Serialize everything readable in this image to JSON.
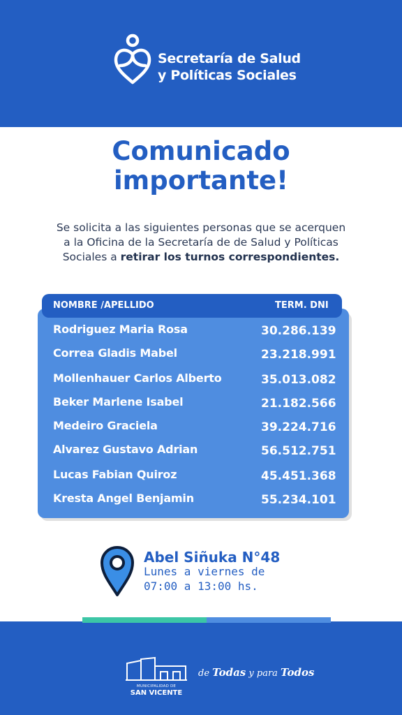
{
  "header": {
    "org_line1": "Secretaría de Salud",
    "org_line2": "y Políticas Sociales",
    "logo_icon": "heart-person-logo-icon"
  },
  "title": {
    "line1": "Comunicado",
    "line2": "importante!"
  },
  "intro": {
    "line1": "Se solicita a las siguientes personas que se acerquen",
    "line2": "a la Oficina de la Secretaría de de Salud y Políticas",
    "line3_prefix": "Sociales a ",
    "line3_bold": "retirar los turnos correspondientes."
  },
  "table": {
    "header_name": "NOMBRE /APELLIDO",
    "header_dni": "TERM. DNI",
    "rows": [
      {
        "name": "Rodriguez Maria Rosa",
        "dni": "30.286.139"
      },
      {
        "name": "Correa Gladis Mabel",
        "dni": "23.218.991"
      },
      {
        "name": "Mollenhauer Carlos Alberto",
        "dni": "35.013.082"
      },
      {
        "name": "Beker Marlene Isabel",
        "dni": "21.182.566"
      },
      {
        "name": "Medeiro Graciela",
        "dni": "39.224.716"
      },
      {
        "name": "Alvarez Gustavo Adrian",
        "dni": "56.512.751"
      },
      {
        "name": "Lucas Fabian Quiroz",
        "dni": "45.451.368"
      },
      {
        "name": "Kresta Angel Benjamin",
        "dni": "55.234.101"
      }
    ]
  },
  "location": {
    "address": "Abel Siñuka N°48",
    "days": "Lunes a viernes de",
    "hours": "07:00 a 13:00 hs.",
    "icon": "location-pin-icon"
  },
  "footer": {
    "muni_small": "MUNICIPALIDAD DE",
    "muni_big": "SAN VICENTE",
    "slogan_de": "de ",
    "slogan_todas": "Todas",
    "slogan_mid": " y para ",
    "slogan_todos": "Todos"
  },
  "colors": {
    "brand_blue": "#235ec2",
    "light_blue": "#4f8de0",
    "accent_green": "#3cc6a6"
  }
}
